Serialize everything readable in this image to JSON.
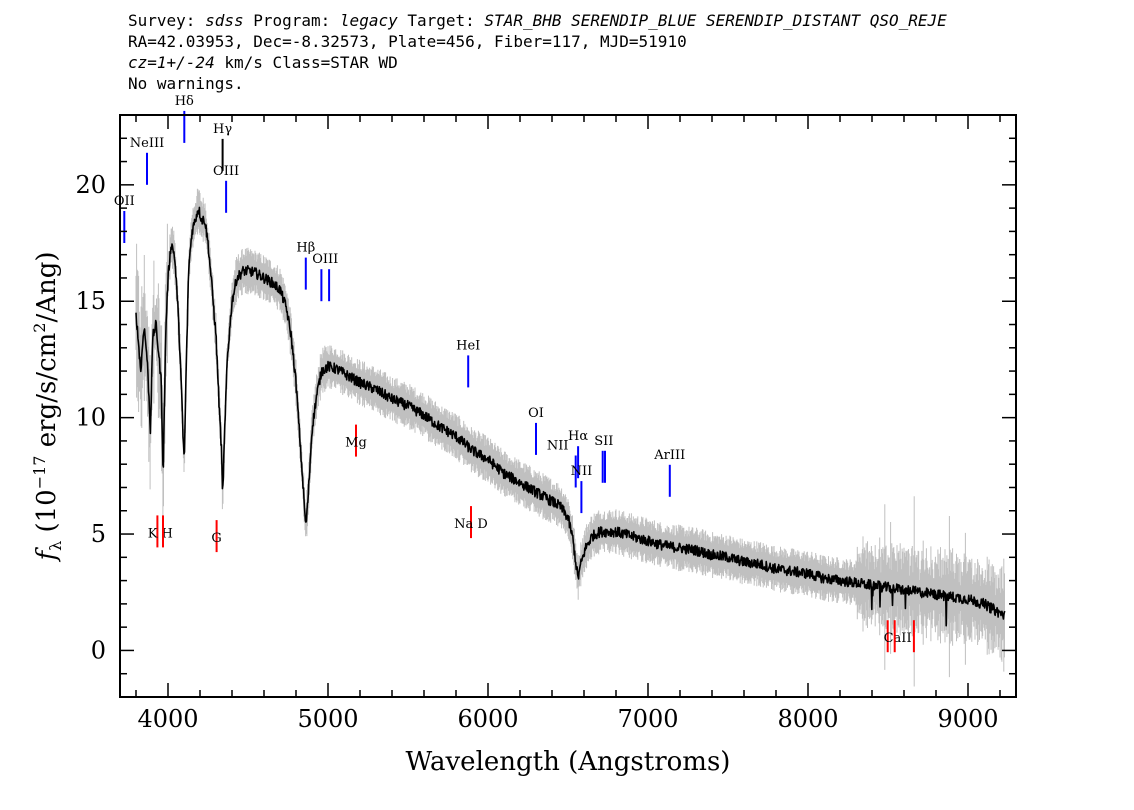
{
  "header": {
    "line1": {
      "survey_label": "Survey: ",
      "survey": "sdss",
      "program_label": " Program: ",
      "program": "legacy",
      "target_label": " Target: ",
      "target": "STAR_BHB SERENDIP_BLUE SERENDIP_DISTANT QSO_REJE"
    },
    "line2": "RA=42.03953, Dec=-8.32573, Plate=456, Fiber=117, MJD=51910",
    "line3": {
      "cz": "cz=1+/-24",
      "rest": " km/s Class=STAR WD"
    },
    "line4": "No warnings."
  },
  "chart_data": {
    "type": "line",
    "title": "",
    "xlabel": "Wavelength (Angstroms)",
    "ylabel": "f_λ (10^-17 erg/s/cm^2/Ang)",
    "ylabel_parts": {
      "f": "f",
      "sub": "λ",
      "pre": " (10",
      "exp1": "−17",
      "mid": " erg/s/cm",
      "exp2": "2",
      "post": "/Ang)"
    },
    "xlim": [
      3700,
      9300
    ],
    "ylim": [
      -2,
      23
    ],
    "x_ticks": [
      4000,
      5000,
      6000,
      7000,
      8000,
      9000
    ],
    "x_tick_labels": [
      "4000",
      "5000",
      "6000",
      "7000",
      "8000",
      "9000"
    ],
    "y_ticks": [
      0,
      5,
      10,
      15,
      20
    ],
    "y_tick_labels": [
      "0",
      "5",
      "10",
      "15",
      "20"
    ],
    "grid": false,
    "colors": {
      "flux": "#000000",
      "noise": "#c0c0c0",
      "emission": "#0000ff",
      "absorption": "#ff0000"
    },
    "series": [
      {
        "values": [
          [
            3800,
            14.5
          ],
          [
            3830,
            12.0
          ],
          [
            3850,
            14.0
          ],
          [
            3870,
            12.5
          ],
          [
            3890,
            9.5
          ],
          [
            3905,
            13.5
          ],
          [
            3925,
            14.0
          ],
          [
            3945,
            12.5
          ],
          [
            3958,
            11.5
          ],
          [
            3970,
            7.5
          ],
          [
            3985,
            13.5
          ],
          [
            4000,
            16.0
          ],
          [
            4020,
            17.5
          ],
          [
            4040,
            17.0
          ],
          [
            4060,
            15.0
          ],
          [
            4080,
            12.0
          ],
          [
            4095,
            9.0
          ],
          [
            4102,
            8.2
          ],
          [
            4115,
            12.5
          ],
          [
            4130,
            16.5
          ],
          [
            4150,
            18.0
          ],
          [
            4170,
            18.5
          ],
          [
            4190,
            19.0
          ],
          [
            4210,
            18.5
          ],
          [
            4230,
            18.5
          ],
          [
            4250,
            17.5
          ],
          [
            4270,
            16.0
          ],
          [
            4300,
            13.5
          ],
          [
            4320,
            10.5
          ],
          [
            4335,
            8.5
          ],
          [
            4341,
            6.5
          ],
          [
            4350,
            8.5
          ],
          [
            4370,
            12.5
          ],
          [
            4400,
            15.0
          ],
          [
            4430,
            16.0
          ],
          [
            4470,
            16.3
          ],
          [
            4510,
            16.3
          ],
          [
            4550,
            16.2
          ],
          [
            4600,
            16.0
          ],
          [
            4650,
            15.8
          ],
          [
            4700,
            15.5
          ],
          [
            4740,
            14.7
          ],
          [
            4770,
            13.5
          ],
          [
            4800,
            11.5
          ],
          [
            4825,
            9.0
          ],
          [
            4845,
            7.0
          ],
          [
            4861,
            5.3
          ],
          [
            4875,
            6.5
          ],
          [
            4900,
            9.5
          ],
          [
            4930,
            11.0
          ],
          [
            4960,
            12.0
          ],
          [
            5000,
            12.2
          ],
          [
            5050,
            12.1
          ],
          [
            5100,
            11.9
          ],
          [
            5150,
            11.7
          ],
          [
            5200,
            11.5
          ],
          [
            5300,
            11.2
          ],
          [
            5400,
            10.8
          ],
          [
            5500,
            10.5
          ],
          [
            5600,
            10.1
          ],
          [
            5700,
            9.6
          ],
          [
            5800,
            9.2
          ],
          [
            5900,
            8.6
          ],
          [
            6000,
            8.2
          ],
          [
            6100,
            7.6
          ],
          [
            6200,
            7.2
          ],
          [
            6300,
            6.8
          ],
          [
            6400,
            6.4
          ],
          [
            6450,
            6.2
          ],
          [
            6500,
            5.7
          ],
          [
            6530,
            4.8
          ],
          [
            6550,
            3.7
          ],
          [
            6563,
            3.1
          ],
          [
            6580,
            3.7
          ],
          [
            6610,
            4.4
          ],
          [
            6650,
            4.9
          ],
          [
            6700,
            5.1
          ],
          [
            6800,
            5.1
          ],
          [
            6900,
            4.9
          ],
          [
            7000,
            4.7
          ],
          [
            7100,
            4.5
          ],
          [
            7200,
            4.4
          ],
          [
            7300,
            4.3
          ],
          [
            7400,
            4.1
          ],
          [
            7500,
            4.0
          ],
          [
            7600,
            3.8
          ],
          [
            7700,
            3.7
          ],
          [
            7800,
            3.5
          ],
          [
            7900,
            3.4
          ],
          [
            8000,
            3.3
          ],
          [
            8100,
            3.1
          ],
          [
            8200,
            3.0
          ],
          [
            8300,
            2.9
          ],
          [
            8400,
            2.8
          ],
          [
            8500,
            2.7
          ],
          [
            8600,
            2.6
          ],
          [
            8700,
            2.5
          ],
          [
            8800,
            2.4
          ],
          [
            8900,
            2.3
          ],
          [
            9000,
            2.2
          ],
          [
            9100,
            2.0
          ],
          [
            9200,
            1.6
          ],
          [
            9230,
            1.5
          ]
        ]
      }
    ],
    "emission_lines": [
      {
        "label": "OII",
        "x": 3727,
        "y": 17.5
      },
      {
        "label": "NeIII",
        "x": 3869,
        "y": 20.0
      },
      {
        "label": "Hδ",
        "x": 4102,
        "y": 21.8
      },
      {
        "label": "Hγ",
        "x": 4341,
        "y": 20.6
      },
      {
        "label": "OIII",
        "x": 4363,
        "y": 18.8
      },
      {
        "label": "Hβ",
        "x": 4861,
        "y": 15.5
      },
      {
        "label": "OIII",
        "x": 4959,
        "y": 15.0
      },
      {
        "label": "OIII",
        "x": 5007,
        "y": 15.0
      },
      {
        "label": "HeI",
        "x": 5876,
        "y": 11.3
      },
      {
        "label": "OI",
        "x": 6300,
        "y": 8.4
      },
      {
        "label": "NII",
        "x": 6548,
        "y": 7.0
      },
      {
        "label": "Hα",
        "x": 6563,
        "y": 7.4
      },
      {
        "label": "NII",
        "x": 6584,
        "y": 5.9
      },
      {
        "label": "SII",
        "x": 6717,
        "y": 7.2
      },
      {
        "label": "SII",
        "x": 6731,
        "y": 7.2
      },
      {
        "label": "ArIII",
        "x": 7136,
        "y": 6.6
      }
    ],
    "absorption_lines": [
      {
        "label": "K",
        "x": 3934,
        "y": 5.8
      },
      {
        "label": "H",
        "x": 3969,
        "y": 5.8
      },
      {
        "label": "G",
        "x": 4304,
        "y": 5.6
      },
      {
        "label": "Mg",
        "x": 5175,
        "y": 9.7
      },
      {
        "label": "Na D",
        "x": 5894,
        "y": 6.2
      },
      {
        "label": "CaII",
        "x": 8498,
        "y": 1.3
      },
      {
        "label": "CaII",
        "x": 8542,
        "y": 1.3
      },
      {
        "label": "CaII",
        "x": 8662,
        "y": 1.3
      }
    ]
  }
}
